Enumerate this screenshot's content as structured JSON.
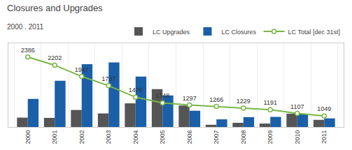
{
  "chart_data": {
    "type": "bar",
    "title": "Closures and Upgrades",
    "subtitle": "2000 . 2011",
    "categories": [
      "2000",
      "2001",
      "2002",
      "2003",
      "2004",
      "2005",
      "2006",
      "2007",
      "2008",
      "2009",
      "2010",
      "2011"
    ],
    "series": [
      {
        "name": "LC Upgrades",
        "type": "bar",
        "color": "#555555",
        "values": [
          38,
          37,
          69,
          55,
          96,
          154,
          87,
          9,
          17,
          14,
          54,
          29
        ]
      },
      {
        "name": "LC Closures",
        "type": "bar",
        "color": "#1a5fa8",
        "values": [
          114,
          188,
          255,
          262,
          205,
          128,
          66,
          31,
          40,
          41,
          53,
          35
        ]
      },
      {
        "name": "LC Total [dec 31st]",
        "type": "line",
        "axis": "y2",
        "color": "#7ab648",
        "marker": "circle",
        "data_labels": true,
        "values": [
          2386,
          2202,
          1947,
          1737,
          1476,
          1348,
          1297,
          1266,
          1229,
          1191,
          1107,
          1049
        ]
      }
    ],
    "ylim": [
      0,
      340
    ],
    "y2lim": [
      800,
      2700
    ],
    "grid": true,
    "legend": "upper right",
    "tick_labels": "x"
  }
}
